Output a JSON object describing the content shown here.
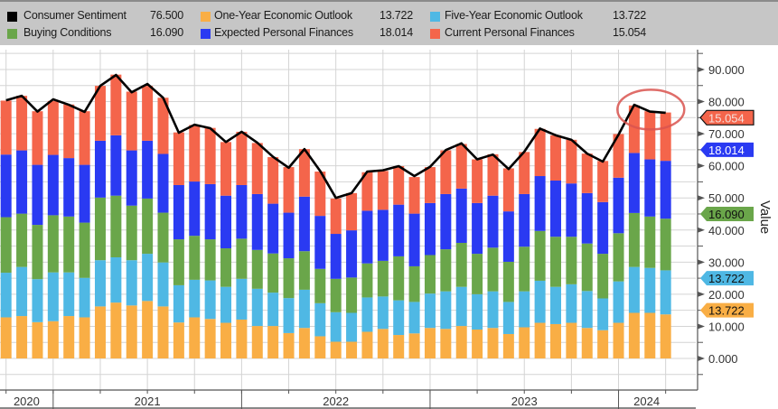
{
  "legend": [
    {
      "label": "Consumer Sentiment",
      "value": "76.500",
      "color": "#000000"
    },
    {
      "label": "One-Year Economic Outlook",
      "value": "13.722",
      "color": "#f9ae45"
    },
    {
      "label": "Five-Year Economic Outlook",
      "value": "13.722",
      "color": "#4fb8e4"
    },
    {
      "label": "Buying Conditions",
      "value": "16.090",
      "color": "#6aa64a"
    },
    {
      "label": "Expected Personal Finances",
      "value": "18.014",
      "color": "#2a3af2"
    },
    {
      "label": "Current Personal Finances",
      "value": "15.054",
      "color": "#f4654b"
    }
  ],
  "chart_data": {
    "type": "bar",
    "stacked": true,
    "frequency": "monthly",
    "x": [
      "2020-09",
      "2020-10",
      "2020-11",
      "2020-12",
      "2021-01",
      "2021-02",
      "2021-03",
      "2021-04",
      "2021-05",
      "2021-06",
      "2021-07",
      "2021-08",
      "2021-09",
      "2021-10",
      "2021-11",
      "2021-12",
      "2022-01",
      "2022-02",
      "2022-03",
      "2022-04",
      "2022-05",
      "2022-06",
      "2022-07",
      "2022-08",
      "2022-09",
      "2022-10",
      "2022-11",
      "2022-12",
      "2023-01",
      "2023-02",
      "2023-03",
      "2023-04",
      "2023-05",
      "2023-06",
      "2023-07",
      "2023-08",
      "2023-09",
      "2023-10",
      "2023-11",
      "2023-12",
      "2024-01",
      "2024-02",
      "2024-03"
    ],
    "x_tick_labels": [
      "2020",
      "2021",
      "2022",
      "2023",
      "2024"
    ],
    "ylabel": "Value",
    "ylim": [
      -9.5,
      96
    ],
    "y_ticks": [
      "0.000",
      "10.000",
      "20.000",
      "30.000",
      "40.000",
      "50.000",
      "60.000",
      "70.000",
      "80.000",
      "90.000"
    ],
    "grid": true,
    "legend_position": "top",
    "series": [
      {
        "name": "One-Year Economic Outlook",
        "color": "#f9ae45",
        "values": [
          12.8,
          13.2,
          11.3,
          11.6,
          13.2,
          12.8,
          16.2,
          17.4,
          16.5,
          17.9,
          16.2,
          11.2,
          12.8,
          12.3,
          11.1,
          12.1,
          10.1,
          10.1,
          7.9,
          9.5,
          6.9,
          5.2,
          5.2,
          8.3,
          9.2,
          7.3,
          7.8,
          9.5,
          9.2,
          10.1,
          9.0,
          9.5,
          7.6,
          9.7,
          11.1,
          10.7,
          11.1,
          9.5,
          8.8,
          11.1,
          14.2,
          14.2,
          13.722
        ]
      },
      {
        "name": "Five-Year Economic Outlook",
        "color": "#4fb8e4",
        "values": [
          13.9,
          15.3,
          13.4,
          15.2,
          13.6,
          12.3,
          14.4,
          14.1,
          14.1,
          14.7,
          13.7,
          11.6,
          11.7,
          12.0,
          11.2,
          12.7,
          11.6,
          10.4,
          10.9,
          11.9,
          10.3,
          9.2,
          9.0,
          10.7,
          10.1,
          10.8,
          9.8,
          10.7,
          11.7,
          12.2,
          11.0,
          11.4,
          10.0,
          11.2,
          13.1,
          11.6,
          12.0,
          11.5,
          9.9,
          12.9,
          14.3,
          14.0,
          13.722
        ]
      },
      {
        "name": "Buying Conditions",
        "color": "#6aa64a",
        "values": [
          17.3,
          16.6,
          16.9,
          17.8,
          17.4,
          17.2,
          19.5,
          19.2,
          17.0,
          17.2,
          15.5,
          14.3,
          13.7,
          12.8,
          12.0,
          12.5,
          12.1,
          12.2,
          12.4,
          12.0,
          10.7,
          10.4,
          11.0,
          10.6,
          11.1,
          13.7,
          11.1,
          12.0,
          13.1,
          13.7,
          12.6,
          13.6,
          12.5,
          13.9,
          15.5,
          15.6,
          14.8,
          14.8,
          13.9,
          15.0,
          16.8,
          16.0,
          16.09
        ]
      },
      {
        "name": "Expected Personal Finances",
        "color": "#2a3af2",
        "values": [
          19.5,
          19.7,
          18.7,
          18.8,
          18.2,
          18.0,
          17.7,
          18.8,
          17.2,
          18.0,
          18.3,
          16.9,
          16.9,
          17.2,
          16.4,
          16.7,
          17.4,
          15.5,
          14.2,
          17.0,
          16.5,
          14.0,
          14.7,
          16.4,
          15.9,
          16.1,
          16.4,
          16.2,
          17.2,
          16.9,
          15.8,
          16.2,
          15.7,
          16.4,
          17.1,
          17.5,
          16.6,
          15.7,
          16.1,
          17.3,
          18.7,
          17.8,
          18.014
        ]
      },
      {
        "name": "Current Personal Finances",
        "color": "#f4654b",
        "values": [
          16.8,
          17.0,
          16.7,
          16.8,
          16.7,
          16.7,
          17.1,
          18.9,
          18.3,
          17.1,
          17.5,
          16.4,
          17.6,
          17.5,
          16.7,
          16.6,
          15.9,
          14.5,
          14.2,
          14.8,
          13.8,
          11.0,
          11.6,
          12.0,
          12.1,
          12.0,
          11.4,
          11.2,
          13.6,
          13.9,
          13.6,
          12.9,
          13.4,
          13.1,
          14.7,
          14.1,
          13.6,
          12.3,
          12.8,
          13.6,
          14.8,
          15.0,
          15.054
        ]
      }
    ],
    "line": {
      "name": "Consumer Sentiment",
      "color": "#000000",
      "values": [
        80.4,
        81.8,
        76.9,
        80.7,
        79.0,
        76.8,
        84.9,
        88.3,
        82.9,
        85.5,
        81.2,
        70.3,
        72.8,
        71.7,
        67.4,
        70.6,
        67.2,
        62.8,
        59.4,
        65.2,
        58.4,
        50.0,
        51.5,
        58.2,
        58.6,
        59.9,
        56.8,
        59.7,
        64.9,
        67.0,
        62.0,
        63.5,
        59.0,
        64.4,
        71.6,
        69.5,
        68.1,
        63.8,
        61.3,
        69.7,
        79.0,
        76.9,
        76.5
      ]
    },
    "last_value_tags": [
      {
        "series": "Current Personal Finances",
        "text": "15.054",
        "color": "#f4654b",
        "text_color": "#f6e0dc"
      },
      {
        "series": "Expected Personal Finances",
        "text": "18.014",
        "color": "#2a3af2",
        "text_color": "#ffffff"
      },
      {
        "series": "Buying Conditions",
        "text": "16.090",
        "color": "#6aa64a",
        "text_color": "#111111"
      },
      {
        "series": "Five-Year Economic Outlook",
        "text": "13.722",
        "color": "#4fb8e4",
        "text_color": "#111111"
      },
      {
        "series": "One-Year Economic Outlook",
        "text": "13.722",
        "color": "#f9ae45",
        "text_color": "#111111"
      }
    ],
    "annotation": {
      "shape": "ellipse",
      "color": "#d9534f",
      "highlights": [
        "2024-01",
        "2024-02",
        "2024-03"
      ]
    }
  }
}
